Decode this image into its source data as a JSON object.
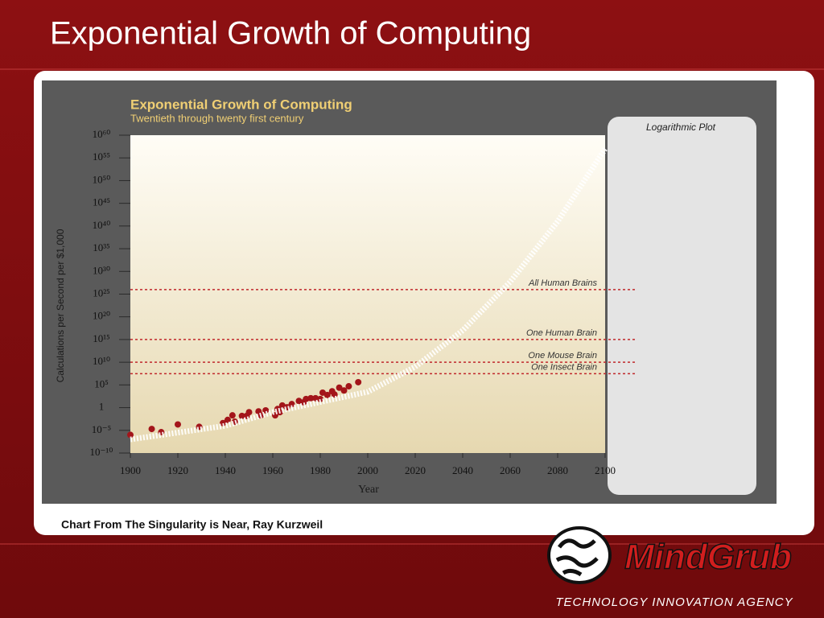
{
  "slide_title": "Exponential Growth of Computing",
  "caption": "Chart From The Singularity is Near, Ray Kurzweil",
  "logo": {
    "name": "MindGrub",
    "tagline": "TECHNOLOGY INNOVATION AGENCY"
  },
  "chart_data": {
    "type": "scatter",
    "title": "Exponential Growth of Computing",
    "subtitle": "Twentieth through twenty first century",
    "panel_label": "Logarithmic Plot",
    "x_label": "Year",
    "y_label": "Calculations per Second per $1,000",
    "y_scale": "log",
    "xlim": [
      1900,
      2100
    ],
    "xticks": [
      1900,
      1920,
      1940,
      1960,
      1980,
      2000,
      2020,
      2040,
      2060,
      2080,
      2100
    ],
    "ylim": [
      1e-10,
      1e+60
    ],
    "yticks": [
      {
        "value": 1e-10,
        "label": "10⁻¹⁰"
      },
      {
        "value": 1e-05,
        "label": "10⁻⁵"
      },
      1,
      {
        "value": 100000.0,
        "label": "10⁵"
      },
      {
        "value": 10000000000.0,
        "label": "10¹⁰"
      },
      {
        "value": 1000000000000000.0,
        "label": "10¹⁵"
      },
      {
        "value": 1e+20,
        "label": "10²⁰"
      },
      {
        "value": 1e+25,
        "label": "10²⁵"
      },
      {
        "value": 1e+30,
        "label": "10³⁰"
      },
      {
        "value": 1e+35,
        "label": "10³⁵"
      },
      {
        "value": 1e+40,
        "label": "10⁴⁰"
      },
      {
        "value": 1e+45,
        "label": "10⁴⁵"
      },
      {
        "value": 1e+50,
        "label": "10⁵⁰"
      },
      {
        "value": 1e+55,
        "label": "10⁵⁵"
      },
      {
        "value": 1e+60,
        "label": "10⁶⁰"
      }
    ],
    "series": [
      {
        "color": "#a3151a",
        "x": [
          1900,
          1909,
          1913,
          1920,
          1929,
          1939,
          1941,
          1943,
          1944,
          1947,
          1949,
          1950,
          1954,
          1955,
          1957,
          1961,
          1962,
          1963,
          1964,
          1966,
          1968,
          1971,
          1973,
          1974,
          1976,
          1978,
          1980,
          1981,
          1983,
          1985,
          1986,
          1988,
          1990,
          1992,
          1996
        ],
        "values": [
          1e-06,
          2e-05,
          4e-06,
          0.0002,
          6e-05,
          0.0004,
          0.002,
          0.02,
          0.0008,
          0.015,
          0.015,
          0.1,
          0.15,
          0.02,
          0.25,
          0.02,
          0.5,
          0.1,
          3,
          1.2,
          6,
          30,
          15,
          80,
          120,
          120,
          80,
          2000,
          600,
          4000,
          800,
          25000,
          6000,
          50000,
          400000
        ]
      },
      {
        "color": "#ffffff",
        "style": "dashed",
        "x": [
          1900,
          1940,
          1960,
          2000,
          2020,
          2040,
          2060,
          2080,
          2100
        ],
        "values": [
          1e-07,
          0.0001,
          0.1,
          3000,
          1000000000.0,
          1e+17,
          5e+27,
          1e+41,
          1e+57
        ]
      }
    ],
    "reference_lines": [
      {
        "label": "All Human Brains",
        "value": 1e+26
      },
      {
        "label": "One Human Brain",
        "value": 1000000000000000.0
      },
      {
        "label": "One Mouse Brain",
        "value": 10000000000.0
      },
      {
        "label": "One Insect Brain",
        "value": 30000000.0
      }
    ],
    "reference_color": "#c0282b"
  }
}
